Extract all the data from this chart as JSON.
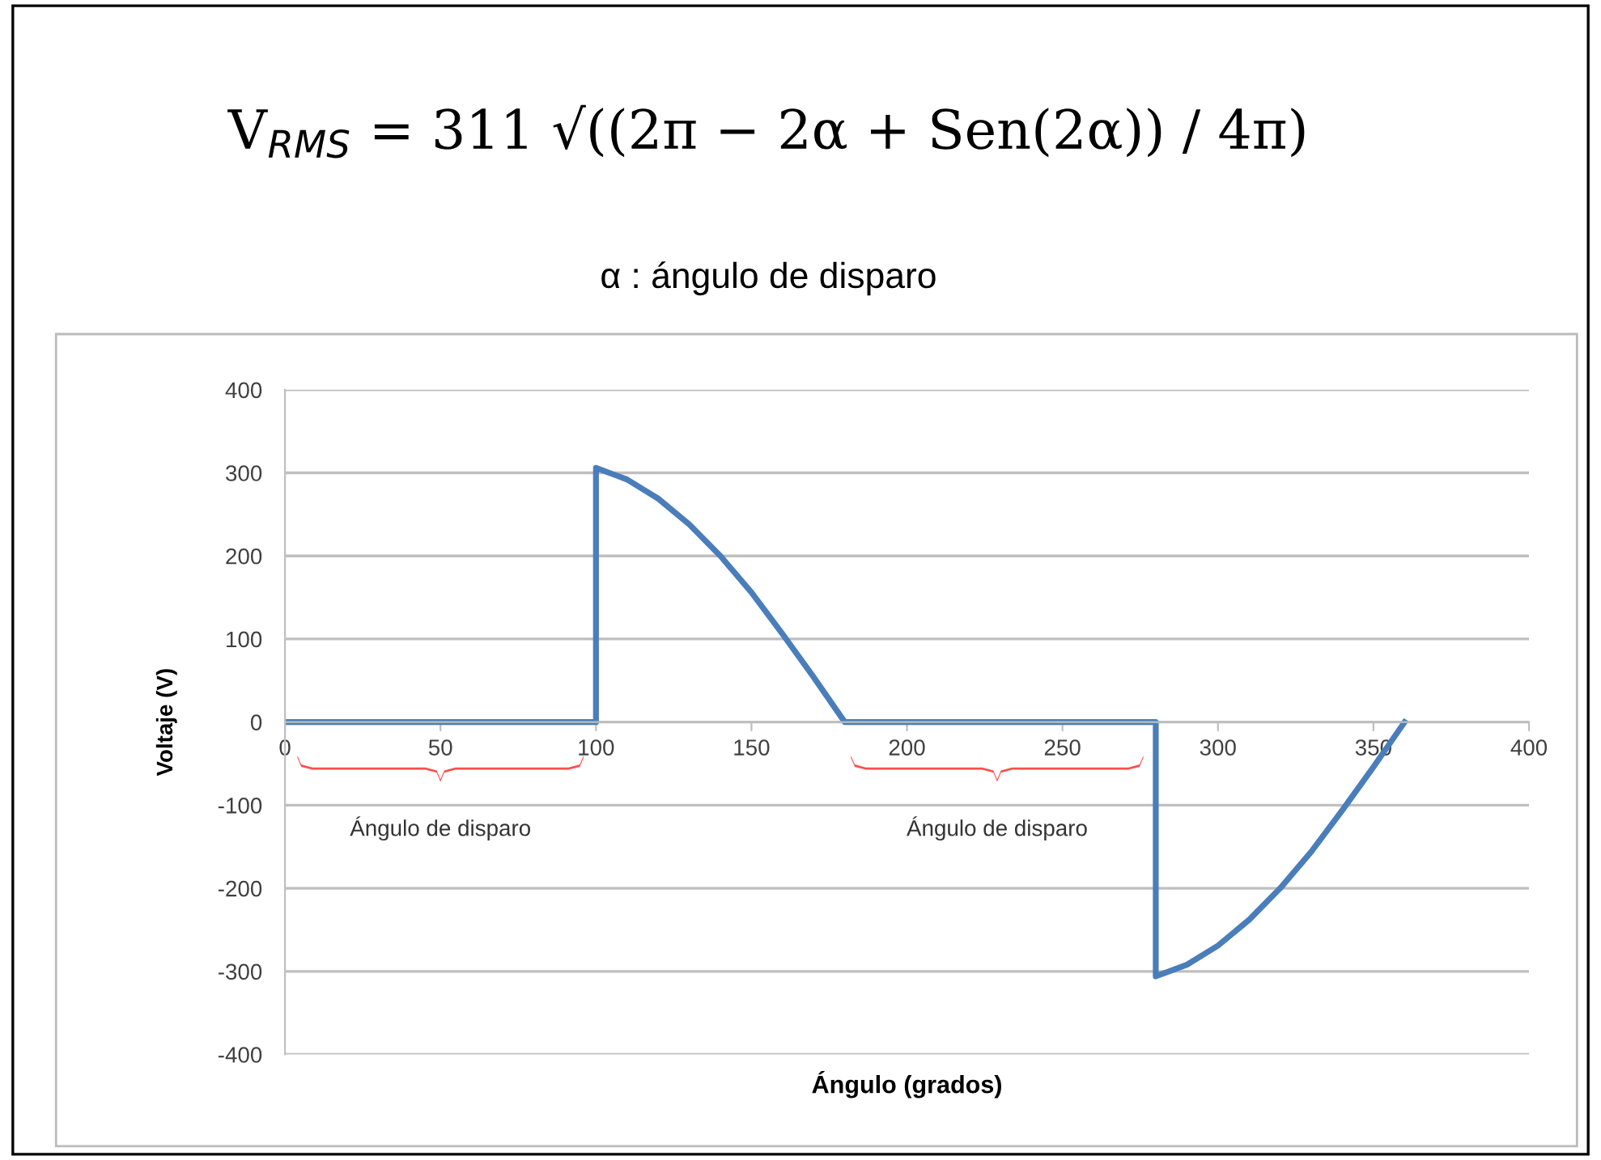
{
  "chart_data": {
    "type": "line",
    "title": "V$_{RMS}$ = 311 √((2π − 2α + Sen(2α)) / 4π)",
    "subtitle": "α : ángulo de disparo",
    "xlabel": "Ángulo (grados)",
    "ylabel": "Voltaje (V)",
    "series": [
      {
        "color": "#4a7ebb",
        "x": [
          0,
          100,
          100,
          110,
          120,
          130,
          140,
          150,
          160,
          170,
          180,
          280,
          280,
          290,
          300,
          310,
          320,
          330,
          340,
          350,
          360
        ],
        "values": [
          0,
          0,
          306,
          292,
          269,
          238,
          200,
          156,
          106,
          54,
          0,
          0,
          -306,
          -292,
          -269,
          -238,
          -200,
          -156,
          -106,
          -54,
          0
        ]
      }
    ],
    "annotations": [
      "Ángulo de disparo",
      "Ángulo de disparo"
    ],
    "xlim": [
      0,
      400
    ],
    "xticks": [
      0,
      50,
      100,
      150,
      200,
      250,
      300,
      350,
      400
    ],
    "ylim": [
      -400,
      400
    ],
    "yticks": [
      -400,
      -300,
      -200,
      -100,
      0,
      100,
      200,
      300,
      400
    ],
    "grid": "y",
    "marker": "none",
    "line_style": "solid"
  }
}
